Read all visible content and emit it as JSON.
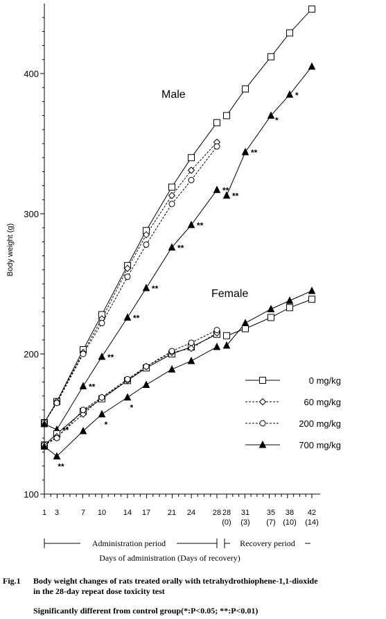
{
  "chart_data": {
    "type": "line",
    "ylabel": "Body weight (g)",
    "xlabel": "Days of administration (Days of recovery)",
    "ylim": [
      100,
      450
    ],
    "y_ticks": [
      "100",
      "200",
      "300",
      "400"
    ],
    "x_tick_labels": [
      {
        "key": "d1",
        "main": "1",
        "sub": ""
      },
      {
        "key": "d3",
        "main": "3",
        "sub": ""
      },
      {
        "key": "d7",
        "main": "7",
        "sub": ""
      },
      {
        "key": "d10",
        "main": "10",
        "sub": ""
      },
      {
        "key": "d14",
        "main": "14",
        "sub": ""
      },
      {
        "key": "d17",
        "main": "17",
        "sub": ""
      },
      {
        "key": "d21",
        "main": "21",
        "sub": ""
      },
      {
        "key": "d24",
        "main": "24",
        "sub": ""
      },
      {
        "key": "d28",
        "main": "28",
        "sub": ""
      },
      {
        "key": "r0",
        "main": "28",
        "sub": "(0)"
      },
      {
        "key": "r3",
        "main": "31",
        "sub": "(3)"
      },
      {
        "key": "r7",
        "main": "35",
        "sub": "(7)"
      },
      {
        "key": "r10",
        "main": "38",
        "sub": "(10)"
      },
      {
        "key": "r14",
        "main": "42",
        "sub": "(14)"
      }
    ],
    "periods": {
      "administration": "Administration  period",
      "recovery": "Recovery period"
    },
    "group_labels": {
      "male": "Male",
      "female": "Female"
    },
    "legend": [
      {
        "label": "0 mg/kg",
        "marker": "square",
        "line": "solid"
      },
      {
        "label": "60 mg/kg",
        "marker": "diamond",
        "line": "dashed"
      },
      {
        "label": "200 mg/kg",
        "marker": "circle",
        "line": "dashed"
      },
      {
        "label": "700 mg/kg",
        "marker": "triangle",
        "line": "solid"
      }
    ],
    "series": [
      {
        "group": "male",
        "dose": "0 mg/kg",
        "marker": "square",
        "line": "solid",
        "x": [
          "d1",
          "d3",
          "d7",
          "d10",
          "d14",
          "d17",
          "d21",
          "d24",
          "d28"
        ],
        "y": [
          151,
          166,
          203,
          228,
          263,
          288,
          319,
          340,
          365
        ]
      },
      {
        "group": "male",
        "dose": "0 mg/kg",
        "marker": "square",
        "line": "solid",
        "x": [
          "r0",
          "r3",
          "r7",
          "r10",
          "r14"
        ],
        "y": [
          370,
          389,
          412,
          429,
          446
        ]
      },
      {
        "group": "male",
        "dose": "60 mg/kg",
        "marker": "diamond",
        "line": "dashed",
        "x": [
          "d1",
          "d3",
          "d7",
          "d10",
          "d14",
          "d17",
          "d21",
          "d24",
          "d28"
        ],
        "y": [
          151,
          166,
          201,
          225,
          261,
          285,
          313,
          331,
          351
        ]
      },
      {
        "group": "male",
        "dose": "200 mg/kg",
        "marker": "circle",
        "line": "dashed",
        "x": [
          "d1",
          "d3",
          "d7",
          "d10",
          "d14",
          "d17",
          "d21",
          "d24",
          "d28"
        ],
        "y": [
          151,
          165,
          200,
          222,
          255,
          278,
          307,
          324,
          348
        ]
      },
      {
        "group": "male",
        "dose": "700 mg/kg",
        "marker": "triangle",
        "line": "solid",
        "x": [
          "d1",
          "d3",
          "d7",
          "d10",
          "d14",
          "d17",
          "d21",
          "d24",
          "d28"
        ],
        "y": [
          150,
          146,
          177,
          198,
          226,
          247,
          276,
          292,
          317
        ]
      },
      {
        "group": "male",
        "dose": "700 mg/kg",
        "marker": "triangle",
        "line": "solid",
        "x": [
          "r0",
          "r3",
          "r7",
          "r10",
          "r14"
        ],
        "y": [
          313,
          344,
          370,
          385,
          405
        ]
      },
      {
        "group": "female",
        "dose": "0 mg/kg",
        "marker": "square",
        "line": "solid",
        "x": [
          "d1",
          "d3",
          "d7",
          "d10",
          "d14",
          "d17",
          "d21",
          "d24",
          "d28"
        ],
        "y": [
          135,
          143,
          159,
          168,
          181,
          190,
          200,
          205,
          214
        ]
      },
      {
        "group": "female",
        "dose": "0 mg/kg",
        "marker": "square",
        "line": "solid",
        "x": [
          "r0",
          "r3",
          "r7",
          "r10",
          "r14"
        ],
        "y": [
          213,
          218,
          226,
          233,
          239
        ]
      },
      {
        "group": "female",
        "dose": "60 mg/kg",
        "marker": "diamond",
        "line": "dashed",
        "x": [
          "d1",
          "d3",
          "d7",
          "d10",
          "d14",
          "d17",
          "d21",
          "d24",
          "d28"
        ],
        "y": [
          135,
          141,
          157,
          169,
          181,
          191,
          201,
          204,
          215
        ]
      },
      {
        "group": "female",
        "dose": "200 mg/kg",
        "marker": "circle",
        "line": "dashed",
        "x": [
          "d1",
          "d3",
          "d7",
          "d10",
          "d14",
          "d17",
          "d21",
          "d24",
          "d28"
        ],
        "y": [
          135,
          140,
          160,
          169,
          182,
          191,
          202,
          208,
          217
        ]
      },
      {
        "group": "female",
        "dose": "700 mg/kg",
        "marker": "triangle",
        "line": "solid",
        "x": [
          "d1",
          "d3",
          "d7",
          "d10",
          "d14",
          "d17",
          "d21",
          "d24",
          "d28"
        ],
        "y": [
          134,
          127,
          145,
          157,
          169,
          178,
          189,
          195,
          205
        ]
      },
      {
        "group": "female",
        "dose": "700 mg/kg",
        "marker": "triangle",
        "line": "solid",
        "x": [
          "r0",
          "r3",
          "r7",
          "r10",
          "r14"
        ],
        "y": [
          206,
          222,
          232,
          238,
          245
        ]
      }
    ],
    "significance_marks": [
      {
        "text": "**",
        "x": "d3",
        "y": 146,
        "side": "right"
      },
      {
        "text": "**",
        "x": "d7",
        "y": 177,
        "side": "right"
      },
      {
        "text": "**",
        "x": "d10",
        "y": 198,
        "side": "right"
      },
      {
        "text": "**",
        "x": "d14",
        "y": 226,
        "side": "right"
      },
      {
        "text": "**",
        "x": "d17",
        "y": 247,
        "side": "right"
      },
      {
        "text": "**",
        "x": "d21",
        "y": 276,
        "side": "right"
      },
      {
        "text": "**",
        "x": "d24",
        "y": 292,
        "side": "right"
      },
      {
        "text": "**",
        "x": "d28",
        "y": 317,
        "side": "right"
      },
      {
        "text": "**",
        "x": "r0",
        "y": 313,
        "side": "right"
      },
      {
        "text": "**",
        "x": "r3",
        "y": 344,
        "side": "right"
      },
      {
        "text": "*",
        "x": "r7",
        "y": 370,
        "side": "below-right"
      },
      {
        "text": "*",
        "x": "r10",
        "y": 385,
        "side": "right"
      },
      {
        "text": "**",
        "x": "d3",
        "y": 127,
        "side": "below"
      },
      {
        "text": "*",
        "x": "d10",
        "y": 157,
        "side": "below"
      },
      {
        "text": "*",
        "x": "d14",
        "y": 169,
        "side": "below"
      }
    ]
  },
  "caption": {
    "fig_label": "Fig.1",
    "line1": "Body weight changes of rats treated orally with tetrahydrothiophene-1,1-dioxide",
    "line2": "in the 28-day repeat dose toxicity test",
    "significance_note": "Significantly different from control group(*:P<0.05;  **:P<0.01)"
  }
}
